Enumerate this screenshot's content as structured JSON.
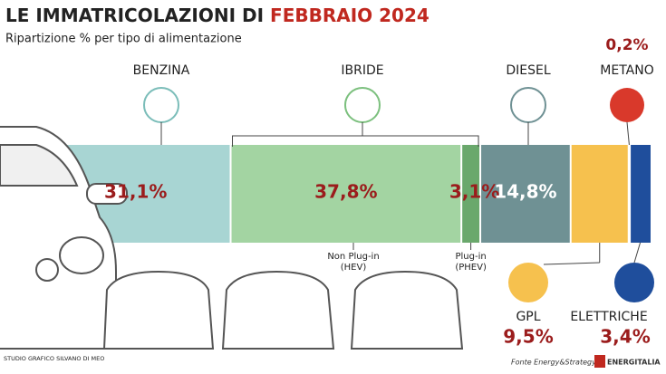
{
  "chart_data": {
    "type": "stackedbar",
    "title": [
      "LE IMMATRICOLAZIONI DI",
      "FEBBRAIO 2024"
    ],
    "subtitle": "Ripartizione % per tipo di alimentazione",
    "group_label": "IBRIDE",
    "series": [
      {
        "name": "BENZINA",
        "color": "#a8d5d3",
        "values": [
          31.1
        ],
        "value_labels": [
          "31,1%"
        ]
      },
      {
        "name": "Non Plug-in (HEV)",
        "color": "#a3d4a2",
        "values": [
          37.8
        ],
        "value_labels": [
          "37,8%"
        ]
      },
      {
        "name": "Plug-in (PHEV)",
        "color": "#6aa86c",
        "values": [
          3.1
        ],
        "value_labels": [
          "3,1%"
        ]
      },
      {
        "name": "DIESEL",
        "color": "#6f9194",
        "values": [
          14.8
        ],
        "value_labels": [
          "14,8%"
        ]
      },
      {
        "name": "GPL",
        "color": "#f6c14e",
        "values": [
          9.5
        ],
        "value_labels": [
          "9,5%"
        ]
      },
      {
        "name": "METANO",
        "color": "#d9392b",
        "values": [
          0.2
        ],
        "value_labels": [
          "0,2%"
        ]
      },
      {
        "name": "ELETTRICHE",
        "color": "#1f4e9c",
        "values": [
          3.4
        ],
        "value_labels": [
          "3,4%"
        ]
      }
    ],
    "credit": "STUDIO GRAFICO SILVANO DI MEO",
    "source": "Fonte Energy&Strategy",
    "logo": "ENERGITALIA"
  }
}
